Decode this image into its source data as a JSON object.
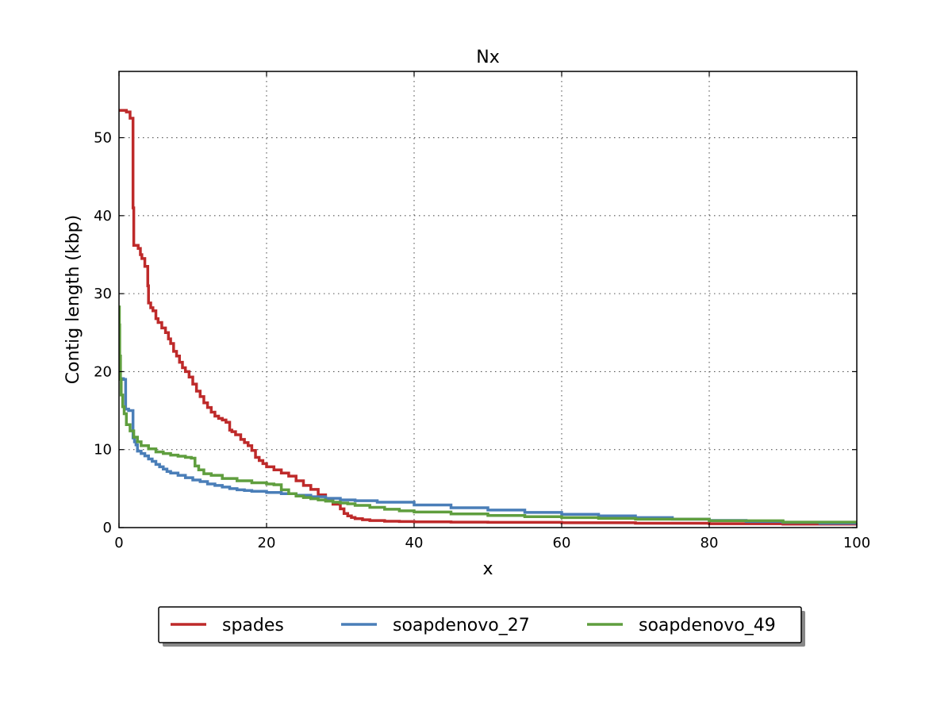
{
  "chart_data": {
    "type": "line",
    "title": "Nx",
    "xlabel": "x",
    "ylabel": "Contig length (kbp)",
    "xlim": [
      0,
      100
    ],
    "ylim": [
      0,
      58.5
    ],
    "xticks": [
      0,
      20,
      40,
      60,
      80,
      100
    ],
    "yticks": [
      0,
      10,
      20,
      30,
      40,
      50
    ],
    "grid": true,
    "legend_placement": "bottom-center",
    "series": [
      {
        "name": "spades",
        "color": "#be2a2a",
        "x": [
          0,
          1.0,
          1.0,
          1.5,
          1.5,
          1.7,
          1.9,
          2.0,
          2.6,
          2.9,
          3.1,
          3.5,
          3.9,
          4.0,
          4.3,
          4.6,
          5.0,
          5.3,
          5.8,
          6.3,
          6.7,
          7.0,
          7.4,
          7.8,
          8.2,
          8.6,
          9.0,
          9.5,
          10.0,
          10.5,
          11.0,
          11.5,
          12.0,
          12.5,
          13.0,
          13.5,
          14.0,
          14.5,
          15.0,
          15.3,
          15.8,
          16.5,
          17.0,
          17.5,
          18.0,
          18.5,
          19.0,
          19.5,
          20.0,
          21.0,
          22.0,
          23.0,
          24.0,
          25.0,
          26.0,
          27.0,
          28.0,
          29.0,
          30.0,
          30.5,
          31.0,
          31.5,
          32.0,
          33.0,
          34.0,
          36.0,
          38.0,
          40.0,
          45.0,
          50.0,
          60.0,
          70.0,
          80.0,
          90.0,
          100.0
        ],
        "y": [
          53.5,
          53.5,
          53.3,
          53.3,
          52.5,
          52.5,
          41.0,
          36.2,
          35.8,
          35.0,
          34.5,
          33.5,
          31.0,
          28.8,
          28.2,
          27.8,
          26.8,
          26.3,
          25.6,
          25.0,
          24.2,
          23.6,
          22.6,
          22.0,
          21.2,
          20.5,
          20.0,
          19.3,
          18.4,
          17.5,
          16.8,
          16.0,
          15.4,
          14.8,
          14.3,
          14.0,
          13.8,
          13.5,
          12.5,
          12.3,
          11.9,
          11.3,
          10.9,
          10.5,
          9.9,
          9.0,
          8.6,
          8.2,
          7.8,
          7.4,
          7.0,
          6.6,
          6.0,
          5.4,
          4.9,
          4.2,
          3.6,
          3.0,
          2.4,
          1.8,
          1.5,
          1.3,
          1.15,
          1.0,
          0.9,
          0.82,
          0.78,
          0.74,
          0.7,
          0.68,
          0.62,
          0.56,
          0.5,
          0.45,
          0.38
        ]
      },
      {
        "name": "soapdenovo_27",
        "color": "#4a7eb8",
        "x": [
          0,
          0.3,
          0.6,
          0.6,
          0.9,
          0.9,
          1.2,
          1.3,
          1.9,
          1.9,
          2.1,
          2.3,
          2.5,
          2.5,
          3.0,
          3.5,
          4.0,
          4.5,
          5.0,
          5.5,
          6.0,
          6.5,
          7.0,
          8.0,
          9.0,
          10.0,
          11.0,
          12.0,
          13.0,
          14.0,
          15.0,
          16.0,
          17.0,
          18.0,
          20.0,
          22.0,
          24.0,
          26.0,
          28.0,
          30.0,
          32.0,
          35.0,
          40.0,
          45.0,
          50.0,
          55.0,
          60.0,
          65.0,
          70.0,
          75.0,
          80.0,
          85.0,
          90.0,
          95.0,
          100.0
        ],
        "y": [
          19.1,
          19.1,
          19.1,
          19.0,
          19.0,
          15.2,
          15.2,
          15.0,
          15.0,
          11.5,
          11.0,
          10.6,
          10.2,
          9.8,
          9.5,
          9.2,
          8.8,
          8.5,
          8.1,
          7.8,
          7.5,
          7.2,
          7.0,
          6.7,
          6.4,
          6.1,
          5.9,
          5.6,
          5.4,
          5.2,
          5.0,
          4.85,
          4.75,
          4.65,
          4.5,
          4.35,
          4.15,
          3.95,
          3.75,
          3.55,
          3.45,
          3.25,
          2.9,
          2.55,
          2.25,
          1.95,
          1.7,
          1.5,
          1.28,
          1.08,
          0.92,
          0.78,
          0.66,
          0.56,
          0.48
        ]
      },
      {
        "name": "soapdenovo_49",
        "color": "#5f9e3e",
        "x": [
          0,
          0.05,
          0.1,
          0.2,
          0.3,
          0.5,
          0.7,
          1.0,
          1.5,
          2.0,
          2.5,
          3.0,
          4.0,
          5.0,
          6.0,
          7.0,
          8.0,
          9.0,
          9.8,
          10.3,
          10.8,
          11.5,
          12.5,
          14.0,
          16.0,
          18.0,
          20.0,
          21.0,
          22.0,
          23.0,
          24.0,
          25.0,
          26.0,
          27.0,
          28.0,
          29.0,
          30.0,
          31.0,
          32.0,
          34.0,
          36.0,
          38.0,
          40.0,
          45.0,
          50.0,
          55.0,
          60.0,
          65.0,
          70.0,
          80.0,
          90.0,
          100.0
        ],
        "y": [
          28.3,
          26.0,
          22.0,
          19.0,
          17.0,
          15.5,
          14.6,
          13.2,
          12.4,
          11.6,
          11.0,
          10.5,
          10.1,
          9.7,
          9.5,
          9.3,
          9.15,
          9.0,
          8.9,
          7.9,
          7.4,
          6.9,
          6.7,
          6.3,
          6.0,
          5.75,
          5.6,
          5.5,
          4.85,
          4.35,
          4.05,
          3.85,
          3.7,
          3.55,
          3.4,
          3.25,
          3.15,
          3.05,
          2.85,
          2.6,
          2.35,
          2.15,
          2.0,
          1.75,
          1.55,
          1.4,
          1.28,
          1.18,
          1.08,
          0.88,
          0.7,
          0.52
        ]
      }
    ]
  }
}
